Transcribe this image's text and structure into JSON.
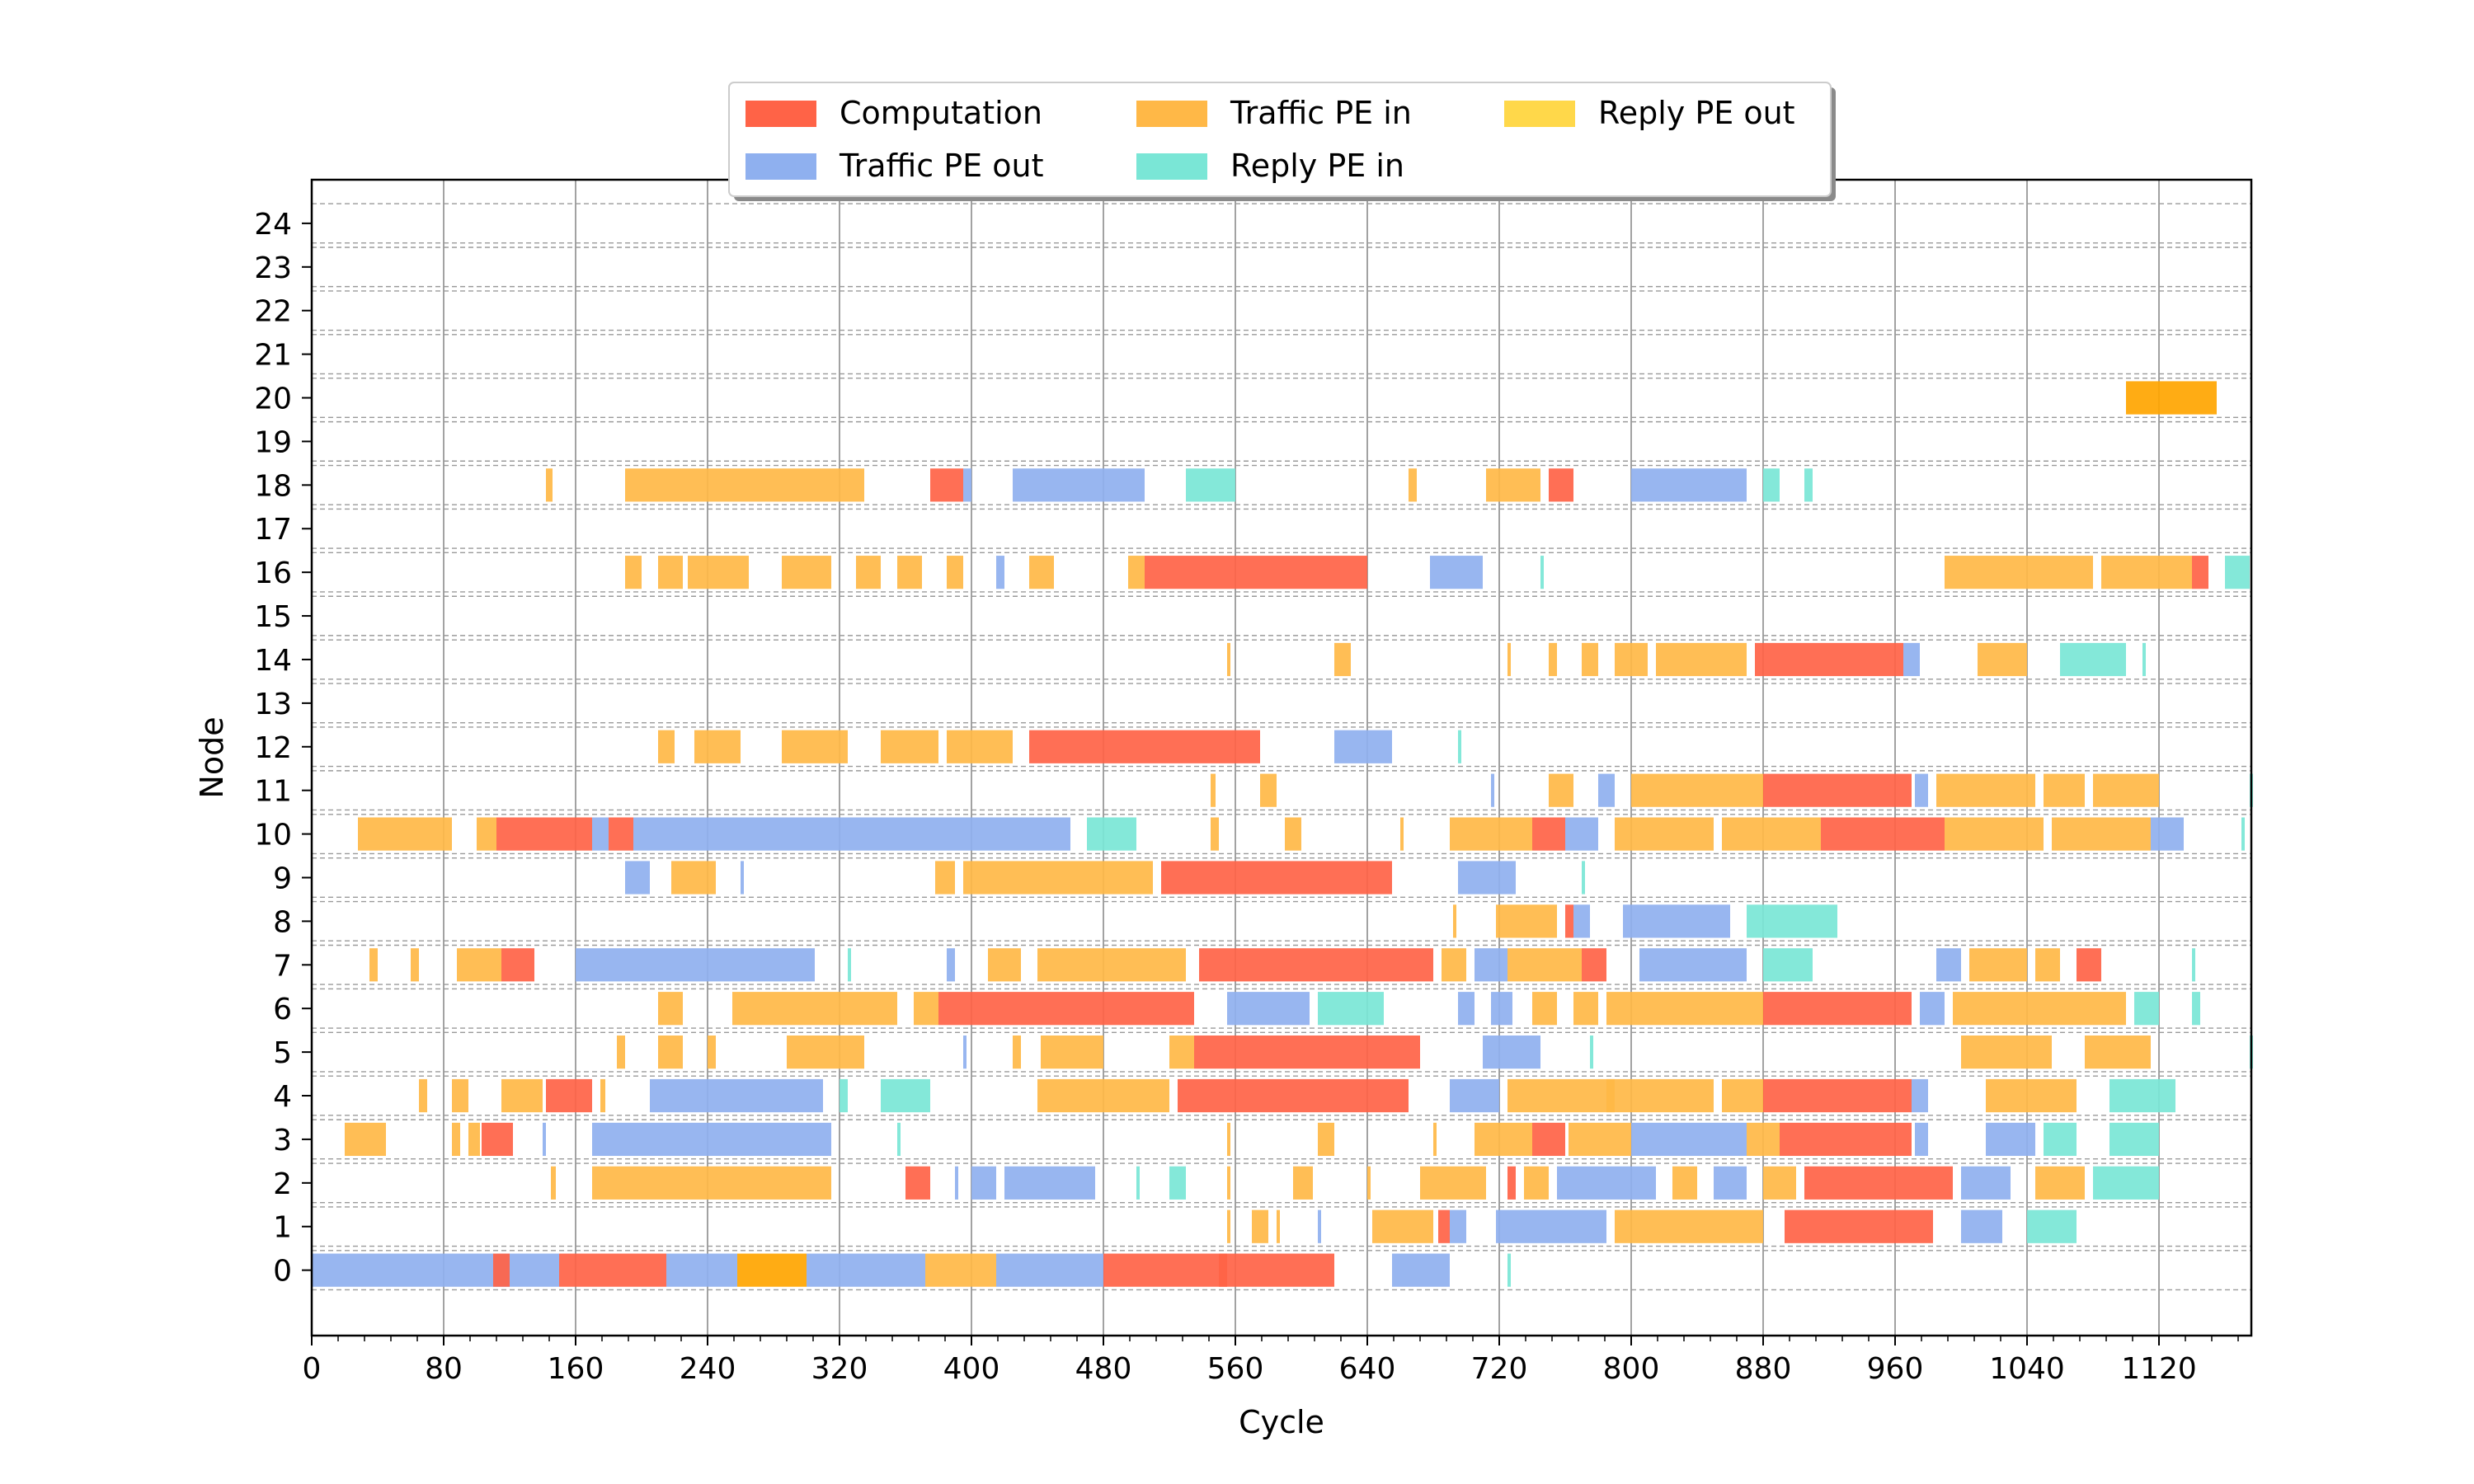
{
  "chart_data": {
    "type": "gantt",
    "xlabel": "Cycle",
    "ylabel": "Node",
    "xlim": [
      0,
      1176
    ],
    "ylim": [
      -1.5,
      25
    ],
    "xticks": [
      "0",
      "80",
      "160",
      "240",
      "320",
      "400",
      "480",
      "560",
      "640",
      "720",
      "800",
      "880",
      "960",
      "1040",
      "1120"
    ],
    "yticks": [
      "0",
      "1",
      "2",
      "3",
      "4",
      "5",
      "6",
      "7",
      "8",
      "9",
      "10",
      "11",
      "12",
      "13",
      "14",
      "15",
      "16",
      "17",
      "18",
      "19",
      "20",
      "21",
      "22",
      "23",
      "24"
    ],
    "grid": {
      "vertical": true,
      "horizontal_dashed": true
    },
    "legend": {
      "placement": "top-center",
      "entries": [
        {
          "name": "Computation",
          "color": "#ff6347"
        },
        {
          "name": "Traffic PE out",
          "color": "#8fb0ef"
        },
        {
          "name": "Traffic PE in",
          "color": "#ffb847"
        },
        {
          "name": "Reply PE in",
          "color": "#7ae6d6"
        },
        {
          "name": "Reply PE out",
          "color": "#ffd84a"
        }
      ]
    },
    "series_colors": {
      "C": "#ff6347",
      "O": "#8fb0ef",
      "I": "#ffb847",
      "R": "#7ae6d6",
      "P": "#ffd84a",
      "D": "#ffa500"
    },
    "segments": [
      [
        0,
        0,
        150,
        "O"
      ],
      [
        0,
        110,
        120,
        "C"
      ],
      [
        0,
        150,
        200,
        "C"
      ],
      [
        0,
        200,
        215,
        "C"
      ],
      [
        0,
        215,
        232,
        "O"
      ],
      [
        0,
        232,
        258,
        "O"
      ],
      [
        0,
        258,
        300,
        "D"
      ],
      [
        0,
        300,
        372,
        "O"
      ],
      [
        0,
        372,
        415,
        "I"
      ],
      [
        0,
        415,
        480,
        "O"
      ],
      [
        0,
        480,
        510,
        "C"
      ],
      [
        0,
        510,
        555,
        "C"
      ],
      [
        0,
        550,
        620,
        "C"
      ],
      [
        0,
        655,
        690,
        "O"
      ],
      [
        0,
        725,
        727,
        "R"
      ],
      [
        1,
        555,
        557,
        "I"
      ],
      [
        1,
        570,
        580,
        "I"
      ],
      [
        1,
        585,
        587,
        "I"
      ],
      [
        1,
        610,
        612,
        "O"
      ],
      [
        1,
        643,
        680,
        "I"
      ],
      [
        1,
        683,
        690,
        "C"
      ],
      [
        1,
        690,
        700,
        "O"
      ],
      [
        1,
        718,
        785,
        "O"
      ],
      [
        1,
        790,
        880,
        "I"
      ],
      [
        1,
        893,
        983,
        "C"
      ],
      [
        1,
        1000,
        1025,
        "O"
      ],
      [
        1,
        1040,
        1070,
        "R"
      ],
      [
        2,
        145,
        148,
        "I"
      ],
      [
        2,
        170,
        315,
        "I"
      ],
      [
        2,
        360,
        375,
        "C"
      ],
      [
        2,
        390,
        392,
        "O"
      ],
      [
        2,
        400,
        415,
        "O"
      ],
      [
        2,
        420,
        475,
        "O"
      ],
      [
        2,
        500,
        502,
        "R"
      ],
      [
        2,
        520,
        530,
        "R"
      ],
      [
        2,
        555,
        557,
        "I"
      ],
      [
        2,
        595,
        607,
        "I"
      ],
      [
        2,
        640,
        642,
        "I"
      ],
      [
        2,
        672,
        712,
        "I"
      ],
      [
        2,
        725,
        730,
        "C"
      ],
      [
        2,
        735,
        750,
        "I"
      ],
      [
        2,
        755,
        815,
        "O"
      ],
      [
        2,
        825,
        840,
        "I"
      ],
      [
        2,
        850,
        870,
        "O"
      ],
      [
        2,
        880,
        900,
        "I"
      ],
      [
        2,
        905,
        995,
        "C"
      ],
      [
        2,
        1000,
        1030,
        "O"
      ],
      [
        2,
        1045,
        1075,
        "I"
      ],
      [
        2,
        1080,
        1120,
        "R"
      ],
      [
        3,
        20,
        45,
        "I"
      ],
      [
        3,
        85,
        90,
        "I"
      ],
      [
        3,
        95,
        102,
        "I"
      ],
      [
        3,
        103,
        122,
        "C"
      ],
      [
        3,
        140,
        142,
        "O"
      ],
      [
        3,
        170,
        315,
        "O"
      ],
      [
        3,
        355,
        357,
        "R"
      ],
      [
        3,
        555,
        557,
        "I"
      ],
      [
        3,
        610,
        620,
        "I"
      ],
      [
        3,
        680,
        682,
        "I"
      ],
      [
        3,
        705,
        740,
        "I"
      ],
      [
        3,
        740,
        760,
        "C"
      ],
      [
        3,
        762,
        800,
        "I"
      ],
      [
        3,
        800,
        870,
        "O"
      ],
      [
        3,
        870,
        890,
        "I"
      ],
      [
        3,
        890,
        970,
        "C"
      ],
      [
        3,
        972,
        980,
        "O"
      ],
      [
        3,
        1015,
        1045,
        "O"
      ],
      [
        3,
        1050,
        1070,
        "R"
      ],
      [
        3,
        1090,
        1120,
        "R"
      ],
      [
        4,
        65,
        70,
        "I"
      ],
      [
        4,
        85,
        95,
        "I"
      ],
      [
        4,
        115,
        140,
        "I"
      ],
      [
        4,
        142,
        170,
        "C"
      ],
      [
        4,
        175,
        178,
        "I"
      ],
      [
        4,
        205,
        310,
        "O"
      ],
      [
        4,
        320,
        325,
        "R"
      ],
      [
        4,
        345,
        375,
        "R"
      ],
      [
        4,
        440,
        520,
        "I"
      ],
      [
        4,
        525,
        665,
        "C"
      ],
      [
        4,
        690,
        720,
        "O"
      ],
      [
        4,
        725,
        790,
        "I"
      ],
      [
        4,
        785,
        850,
        "I"
      ],
      [
        4,
        855,
        880,
        "I"
      ],
      [
        4,
        880,
        970,
        "C"
      ],
      [
        4,
        970,
        980,
        "O"
      ],
      [
        4,
        1015,
        1070,
        "I"
      ],
      [
        4,
        1090,
        1130,
        "R"
      ],
      [
        5,
        185,
        190,
        "I"
      ],
      [
        5,
        210,
        225,
        "I"
      ],
      [
        5,
        240,
        245,
        "I"
      ],
      [
        5,
        288,
        335,
        "I"
      ],
      [
        5,
        395,
        397,
        "O"
      ],
      [
        5,
        425,
        430,
        "I"
      ],
      [
        5,
        442,
        480,
        "I"
      ],
      [
        5,
        520,
        535,
        "I"
      ],
      [
        5,
        535,
        672,
        "C"
      ],
      [
        5,
        710,
        745,
        "O"
      ],
      [
        5,
        775,
        777,
        "R"
      ],
      [
        5,
        1000,
        1055,
        "I"
      ],
      [
        5,
        1075,
        1115,
        "I"
      ],
      [
        5,
        1175,
        1177,
        "R"
      ],
      [
        6,
        210,
        225,
        "I"
      ],
      [
        6,
        255,
        310,
        "I"
      ],
      [
        6,
        310,
        355,
        "I"
      ],
      [
        6,
        365,
        380,
        "I"
      ],
      [
        6,
        380,
        520,
        "C"
      ],
      [
        6,
        520,
        535,
        "C"
      ],
      [
        6,
        555,
        605,
        "O"
      ],
      [
        6,
        610,
        650,
        "R"
      ],
      [
        6,
        695,
        705,
        "O"
      ],
      [
        6,
        715,
        728,
        "O"
      ],
      [
        6,
        740,
        755,
        "I"
      ],
      [
        6,
        765,
        780,
        "I"
      ],
      [
        6,
        785,
        880,
        "I"
      ],
      [
        6,
        880,
        970,
        "C"
      ],
      [
        6,
        975,
        990,
        "O"
      ],
      [
        6,
        995,
        1050,
        "I"
      ],
      [
        6,
        1050,
        1100,
        "I"
      ],
      [
        6,
        1105,
        1120,
        "R"
      ],
      [
        6,
        1140,
        1145,
        "R"
      ],
      [
        7,
        35,
        40,
        "I"
      ],
      [
        7,
        60,
        65,
        "I"
      ],
      [
        7,
        88,
        115,
        "I"
      ],
      [
        7,
        115,
        135,
        "C"
      ],
      [
        7,
        160,
        305,
        "O"
      ],
      [
        7,
        325,
        327,
        "R"
      ],
      [
        7,
        385,
        390,
        "O"
      ],
      [
        7,
        410,
        430,
        "I"
      ],
      [
        7,
        440,
        530,
        "I"
      ],
      [
        7,
        538,
        680,
        "C"
      ],
      [
        7,
        685,
        700,
        "I"
      ],
      [
        7,
        705,
        725,
        "O"
      ],
      [
        7,
        725,
        770,
        "I"
      ],
      [
        7,
        770,
        785,
        "C"
      ],
      [
        7,
        805,
        870,
        "O"
      ],
      [
        7,
        880,
        910,
        "R"
      ],
      [
        7,
        985,
        1000,
        "O"
      ],
      [
        7,
        1005,
        1040,
        "I"
      ],
      [
        7,
        1045,
        1060,
        "I"
      ],
      [
        7,
        1070,
        1085,
        "C"
      ],
      [
        7,
        1140,
        1142,
        "R"
      ],
      [
        8,
        692,
        694,
        "I"
      ],
      [
        8,
        718,
        755,
        "I"
      ],
      [
        8,
        760,
        765,
        "C"
      ],
      [
        8,
        765,
        775,
        "O"
      ],
      [
        8,
        795,
        860,
        "O"
      ],
      [
        8,
        870,
        925,
        "R"
      ],
      [
        9,
        190,
        205,
        "O"
      ],
      [
        9,
        218,
        245,
        "I"
      ],
      [
        9,
        260,
        262,
        "O"
      ],
      [
        9,
        378,
        390,
        "I"
      ],
      [
        9,
        395,
        420,
        "I"
      ],
      [
        9,
        420,
        480,
        "I"
      ],
      [
        9,
        480,
        510,
        "I"
      ],
      [
        9,
        515,
        655,
        "C"
      ],
      [
        9,
        695,
        730,
        "O"
      ],
      [
        9,
        770,
        772,
        "R"
      ],
      [
        10,
        28,
        85,
        "I"
      ],
      [
        10,
        100,
        112,
        "I"
      ],
      [
        10,
        112,
        135,
        "C"
      ],
      [
        10,
        135,
        170,
        "C"
      ],
      [
        10,
        170,
        180,
        "O"
      ],
      [
        10,
        180,
        195,
        "C"
      ],
      [
        10,
        195,
        270,
        "O"
      ],
      [
        10,
        270,
        355,
        "O"
      ],
      [
        10,
        355,
        460,
        "O"
      ],
      [
        10,
        470,
        500,
        "R"
      ],
      [
        10,
        545,
        550,
        "I"
      ],
      [
        10,
        590,
        600,
        "I"
      ],
      [
        10,
        660,
        662,
        "I"
      ],
      [
        10,
        690,
        740,
        "I"
      ],
      [
        10,
        740,
        760,
        "C"
      ],
      [
        10,
        760,
        780,
        "O"
      ],
      [
        10,
        790,
        850,
        "I"
      ],
      [
        10,
        855,
        880,
        "I"
      ],
      [
        10,
        880,
        915,
        "I"
      ],
      [
        10,
        915,
        990,
        "C"
      ],
      [
        10,
        990,
        1050,
        "I"
      ],
      [
        10,
        1055,
        1115,
        "I"
      ],
      [
        10,
        1115,
        1135,
        "O"
      ],
      [
        10,
        1170,
        1172,
        "R"
      ],
      [
        11,
        545,
        548,
        "I"
      ],
      [
        11,
        575,
        585,
        "I"
      ],
      [
        11,
        715,
        717,
        "O"
      ],
      [
        11,
        750,
        765,
        "I"
      ],
      [
        11,
        780,
        790,
        "O"
      ],
      [
        11,
        800,
        880,
        "I"
      ],
      [
        11,
        880,
        970,
        "C"
      ],
      [
        11,
        972,
        980,
        "O"
      ],
      [
        11,
        985,
        1045,
        "I"
      ],
      [
        11,
        1050,
        1075,
        "I"
      ],
      [
        11,
        1080,
        1120,
        "I"
      ],
      [
        11,
        1175,
        1177,
        "R"
      ],
      [
        12,
        210,
        220,
        "I"
      ],
      [
        12,
        232,
        260,
        "I"
      ],
      [
        12,
        285,
        325,
        "I"
      ],
      [
        12,
        345,
        380,
        "I"
      ],
      [
        12,
        385,
        425,
        "I"
      ],
      [
        12,
        435,
        575,
        "C"
      ],
      [
        12,
        620,
        655,
        "O"
      ],
      [
        12,
        695,
        697,
        "R"
      ],
      [
        13
      ],
      [
        14,
        555,
        557,
        "I"
      ],
      [
        14,
        620,
        630,
        "I"
      ],
      [
        14,
        725,
        727,
        "I"
      ],
      [
        14,
        750,
        755,
        "I"
      ],
      [
        14,
        770,
        780,
        "I"
      ],
      [
        14,
        790,
        810,
        "I"
      ],
      [
        14,
        815,
        870,
        "I"
      ],
      [
        14,
        875,
        965,
        "C"
      ],
      [
        14,
        965,
        975,
        "O"
      ],
      [
        14,
        1010,
        1040,
        "I"
      ],
      [
        14,
        1060,
        1100,
        "R"
      ],
      [
        14,
        1110,
        1112,
        "R"
      ],
      [
        15
      ],
      [
        16,
        190,
        200,
        "I"
      ],
      [
        16,
        210,
        225,
        "I"
      ],
      [
        16,
        228,
        265,
        "I"
      ],
      [
        16,
        285,
        315,
        "I"
      ],
      [
        16,
        330,
        345,
        "I"
      ],
      [
        16,
        355,
        370,
        "I"
      ],
      [
        16,
        385,
        395,
        "I"
      ],
      [
        16,
        415,
        420,
        "O"
      ],
      [
        16,
        435,
        450,
        "I"
      ],
      [
        16,
        495,
        505,
        "I"
      ],
      [
        16,
        505,
        640,
        "C"
      ],
      [
        16,
        678,
        710,
        "O"
      ],
      [
        16,
        745,
        747,
        "R"
      ],
      [
        16,
        990,
        1080,
        "I"
      ],
      [
        16,
        1085,
        1140,
        "I"
      ],
      [
        16,
        1140,
        1150,
        "C"
      ],
      [
        16,
        1160,
        1175,
        "R"
      ],
      [
        17
      ],
      [
        18,
        142,
        146,
        "I"
      ],
      [
        18,
        190,
        335,
        "I"
      ],
      [
        18,
        375,
        395,
        "C"
      ],
      [
        18,
        395,
        400,
        "O"
      ],
      [
        18,
        425,
        450,
        "O"
      ],
      [
        18,
        450,
        505,
        "O"
      ],
      [
        18,
        530,
        560,
        "R"
      ],
      [
        18,
        665,
        670,
        "I"
      ],
      [
        18,
        712,
        745,
        "I"
      ],
      [
        18,
        750,
        755,
        "C"
      ],
      [
        18,
        755,
        765,
        "C"
      ],
      [
        18,
        800,
        870,
        "O"
      ],
      [
        18,
        880,
        890,
        "R"
      ],
      [
        18,
        905,
        910,
        "R"
      ],
      [
        19
      ],
      [
        20,
        1100,
        1155,
        "D"
      ],
      [
        21
      ],
      [
        22
      ],
      [
        23
      ],
      [
        24
      ]
    ]
  }
}
